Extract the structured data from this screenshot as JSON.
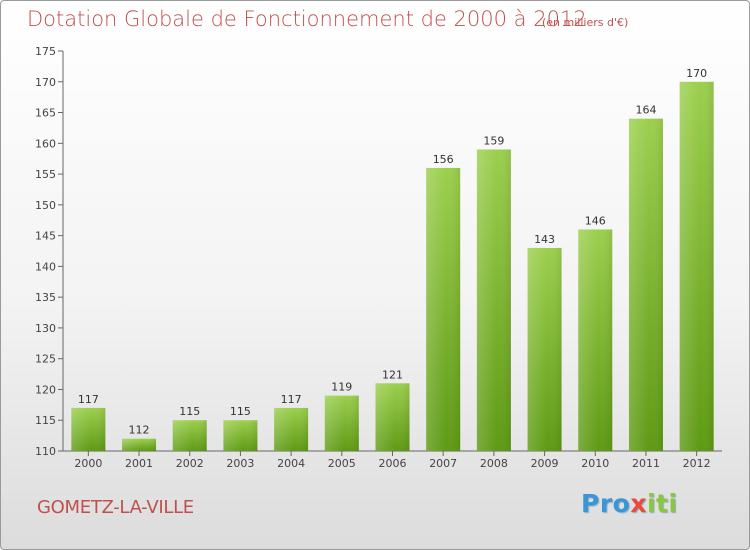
{
  "header": {
    "title": "Dotation Globale de Fonctionnement de 2000 à 2012",
    "subtitle": "(en milliers d'€)"
  },
  "footer": {
    "commune": "GOMETZ-LA-VILLE",
    "logo": "Proxiti"
  },
  "colors": {
    "title": "#c0504d",
    "bar_light": "#9ccf4e",
    "bar_dark": "#5e9a14",
    "axis": "#666666"
  },
  "chart_data": {
    "type": "bar",
    "categories": [
      "2000",
      "2001",
      "2002",
      "2003",
      "2004",
      "2005",
      "2006",
      "2007",
      "2008",
      "2009",
      "2010",
      "2011",
      "2012"
    ],
    "values": [
      117,
      112,
      115,
      115,
      117,
      119,
      121,
      156,
      159,
      143,
      146,
      164,
      170
    ],
    "title": "Dotation Globale de Fonctionnement de 2000 à 2012",
    "subtitle": "(en milliers d'€)",
    "xlabel": "",
    "ylabel": "",
    "ylim": [
      110,
      175
    ],
    "yticks": [
      110,
      115,
      120,
      125,
      130,
      135,
      140,
      145,
      150,
      155,
      160,
      165,
      170,
      175
    ],
    "grid": false,
    "data_labels": true
  }
}
